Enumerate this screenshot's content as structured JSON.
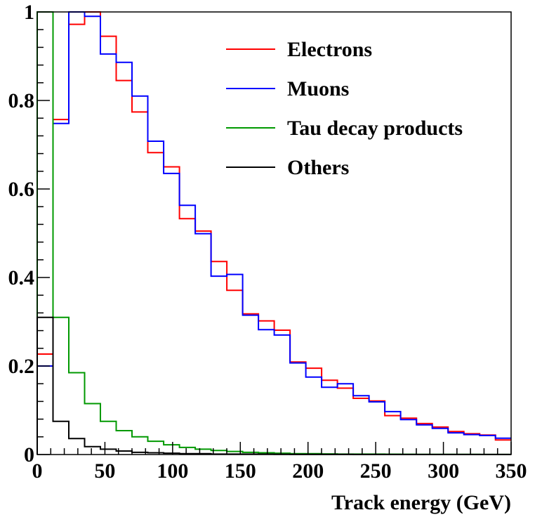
{
  "chart_data": {
    "type": "line",
    "step": true,
    "xlabel": "Track energy (GeV)",
    "ylabel": "",
    "xlim": [
      0,
      350
    ],
    "ylim": [
      0,
      1
    ],
    "bin_width": 11.67,
    "xticks": [
      0,
      50,
      100,
      150,
      200,
      250,
      300,
      350
    ],
    "xtick_labels": [
      "0",
      "50",
      "100",
      "150",
      "200",
      "250",
      "300",
      "350"
    ],
    "yticks": [
      0,
      0.2,
      0.4,
      0.6,
      0.8,
      1
    ],
    "ytick_labels": [
      "0",
      "0.2",
      "0.4",
      "0.6",
      "0.8",
      "1"
    ],
    "grid": false,
    "legend_position": "top-right",
    "series": [
      {
        "name": "Electrons",
        "color": "#ff0000",
        "values": [
          0.227,
          0.757,
          0.972,
          1.0,
          0.945,
          0.845,
          0.774,
          0.682,
          0.65,
          0.533,
          0.505,
          0.436,
          0.371,
          0.318,
          0.302,
          0.281,
          0.209,
          0.195,
          0.168,
          0.15,
          0.127,
          0.121,
          0.088,
          0.082,
          0.07,
          0.062,
          0.052,
          0.047,
          0.044,
          0.033
        ]
      },
      {
        "name": "Muons",
        "color": "#0000ff",
        "values": [
          0.2,
          0.748,
          1.0,
          0.99,
          0.905,
          0.886,
          0.81,
          0.708,
          0.635,
          0.563,
          0.499,
          0.403,
          0.407,
          0.315,
          0.282,
          0.27,
          0.207,
          0.175,
          0.152,
          0.16,
          0.133,
          0.119,
          0.097,
          0.079,
          0.067,
          0.059,
          0.049,
          0.045,
          0.043,
          0.037
        ]
      },
      {
        "name": "Tau decay products",
        "color": "#009900",
        "values": [
          1.0,
          0.31,
          0.185,
          0.115,
          0.075,
          0.054,
          0.04,
          0.03,
          0.022,
          0.016,
          0.012,
          0.009,
          0.007,
          0.005,
          0.004,
          0.003,
          0.002,
          0.002,
          0.0015,
          0.001,
          0.001,
          0.001,
          0.0008,
          0.0006,
          0.0005,
          0.0004,
          0.0003,
          0.0003,
          0.0002,
          0.0002
        ]
      },
      {
        "name": "Others",
        "color": "#000000",
        "values": [
          0.31,
          0.075,
          0.036,
          0.018,
          0.012,
          0.008,
          0.005,
          0.004,
          0.003,
          0.002,
          0.002,
          0.001,
          0.001,
          0.001,
          0.0008,
          0.0006,
          0.0005,
          0.0004,
          0.0003,
          0.0003,
          0.0002,
          0.0002,
          0.0002,
          0.0001,
          0.0001,
          0.0001,
          0.0001,
          0.0001,
          0.0001,
          0.0001
        ]
      }
    ]
  }
}
